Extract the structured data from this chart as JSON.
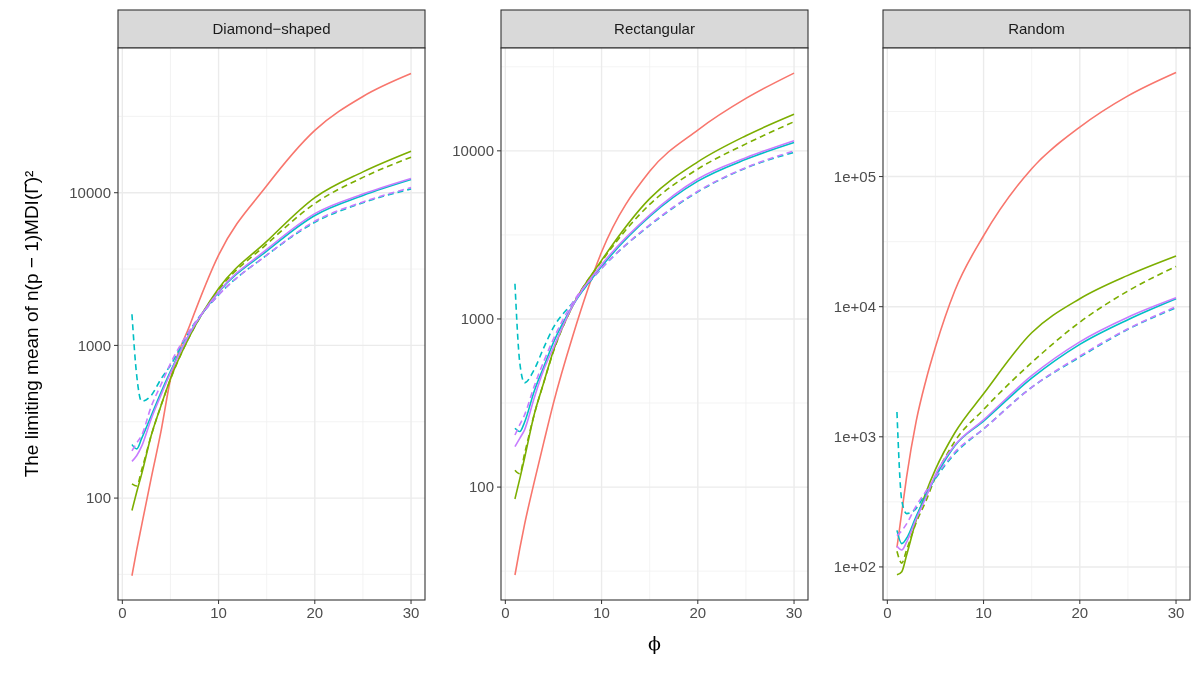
{
  "chart_data": [
    {
      "type": "line",
      "title": "Diamond−shaped",
      "ylabel": "The limiting mean of  n(p − 1)MDI(Γ̂)²",
      "log": "y",
      "grid": true,
      "tick_labels": "xy",
      "x": [
        1,
        1.5,
        2,
        3,
        4,
        5,
        7,
        10,
        15,
        20,
        25,
        30
      ],
      "xlim": [
        -0.45,
        31.45
      ],
      "xticks": [
        0,
        10,
        20,
        30
      ],
      "ylim": [
        21.5,
        88700
      ],
      "yticks": [
        100,
        1000,
        10000
      ],
      "series": [
        {
          "color": "#f8766d",
          "line_style": "solid",
          "values": [
            31,
            46,
            66,
            135,
            270,
            600,
            1350,
            3900,
            11100,
            25600,
            42700,
            60300
          ]
        },
        {
          "color": "#7cae00",
          "line_style": "solid",
          "values": [
            83,
            110,
            143,
            257,
            400,
            605,
            1150,
            2360,
            4800,
            9300,
            13700,
            18700
          ]
        },
        {
          "color": "#7cae00",
          "line_style": "dashed",
          "values": [
            124,
            120,
            152,
            257,
            400,
            600,
            1150,
            2300,
            4600,
            8500,
            12600,
            17100
          ]
        },
        {
          "color": "#00bfc4",
          "line_style": "solid",
          "values": [
            224,
            210,
            245,
            346,
            490,
            675,
            1200,
            2230,
            4150,
            7100,
            9600,
            12200
          ]
        },
        {
          "color": "#00bfc4",
          "line_style": "dashed",
          "values": [
            1600,
            630,
            430,
            470,
            600,
            740,
            1250,
            2140,
            3900,
            6400,
            8600,
            10600
          ]
        },
        {
          "color": "#c77cff",
          "line_style": "solid",
          "values": [
            174,
            190,
            218,
            330,
            470,
            660,
            1200,
            2250,
            4250,
            7300,
            9800,
            12400
          ]
        },
        {
          "color": "#c77cff",
          "line_style": "dashed",
          "values": [
            204,
            230,
            257,
            398,
            550,
            760,
            1250,
            2140,
            3900,
            6500,
            8700,
            10800
          ]
        }
      ]
    },
    {
      "type": "line",
      "title": "Rectangular",
      "xlabel": "ϕ",
      "log": "y",
      "grid": true,
      "tick_labels": "xy",
      "x": [
        1,
        1.5,
        2,
        3,
        4,
        5,
        7,
        10,
        15,
        20,
        25,
        30
      ],
      "xlim": [
        -0.45,
        31.45
      ],
      "xticks": [
        0,
        10,
        20,
        30
      ],
      "ylim": [
        21.3,
        40900
      ],
      "yticks": [
        100,
        1000,
        10000
      ],
      "series": [
        {
          "color": "#f8766d",
          "line_style": "solid",
          "values": [
            30,
            43,
            60,
            107,
            185,
            316,
            790,
            2500,
            7550,
            13300,
            20500,
            29000
          ]
        },
        {
          "color": "#7cae00",
          "line_style": "solid",
          "values": [
            85,
            112,
            149,
            270,
            420,
            650,
            1200,
            2230,
            5200,
            8600,
            12300,
            16500
          ]
        },
        {
          "color": "#7cae00",
          "line_style": "dashed",
          "values": [
            126,
            120,
            158,
            270,
            420,
            640,
            1200,
            2200,
            4800,
            7800,
            11000,
            14900
          ]
        },
        {
          "color": "#00bfc4",
          "line_style": "solid",
          "values": [
            224,
            214,
            243,
            372,
            520,
            725,
            1200,
            2050,
            4070,
            6600,
            8900,
            11200
          ]
        },
        {
          "color": "#00bfc4",
          "line_style": "dashed",
          "values": [
            1620,
            550,
            417,
            500,
            676,
            890,
            1250,
            2000,
            3600,
            5700,
            7900,
            9800
          ]
        },
        {
          "color": "#c77cff",
          "line_style": "solid",
          "values": [
            174,
            195,
            219,
            339,
            500,
            676,
            1200,
            2100,
            4150,
            6800,
            9100,
            11500
          ]
        },
        {
          "color": "#c77cff",
          "line_style": "dashed",
          "values": [
            204,
            235,
            269,
            398,
            560,
            760,
            1250,
            2000,
            3630,
            5750,
            7950,
            10000
          ]
        }
      ]
    },
    {
      "type": "line",
      "title": "Random",
      "log": "y",
      "grid": true,
      "tick_labels": "xy",
      "x": [
        1,
        1.5,
        2,
        3,
        4,
        5,
        7,
        10,
        15,
        20,
        25,
        30
      ],
      "xlim": [
        -0.45,
        31.45
      ],
      "xticks": [
        0,
        10,
        20,
        30
      ],
      "ylim": [
        55.7,
        973000
      ],
      "yticks": [
        {
          "value": 100,
          "label": "1e+02"
        },
        {
          "value": 1000,
          "label": "1e+03"
        },
        {
          "value": 10000,
          "label": "1e+04"
        },
        {
          "value": 100000,
          "label": "1e+05"
        }
      ],
      "series": [
        {
          "color": "#f8766d",
          "line_style": "solid",
          "values": [
            141,
            263,
            490,
            1320,
            2700,
            4900,
            13200,
            35100,
            115000,
            240000,
            417000,
            631000
          ]
        },
        {
          "color": "#7cae00",
          "line_style": "solid",
          "values": [
            87,
            92,
            123,
            229,
            372,
            562,
            1070,
            2140,
            6300,
            11500,
            17400,
            24500
          ]
        },
        {
          "color": "#7cae00",
          "line_style": "dashed",
          "values": [
            132,
            107,
            135,
            219,
            320,
            490,
            920,
            1620,
            3720,
            7600,
            13200,
            20400
          ]
        },
        {
          "color": "#00bfc4",
          "line_style": "solid",
          "values": [
            191,
            151,
            166,
            245,
            350,
            490,
            850,
            1320,
            2820,
            5130,
            7940,
            11500
          ]
        },
        {
          "color": "#00bfc4",
          "line_style": "dashed",
          "values": [
            1550,
            324,
            257,
            282,
            372,
            479,
            740,
            1150,
            2400,
            4100,
            6700,
            9800
          ]
        },
        {
          "color": "#c77cff",
          "line_style": "solid",
          "values": [
            145,
            135,
            155,
            234,
            340,
            513,
            860,
            1350,
            2950,
            5370,
            8300,
            11700
          ]
        },
        {
          "color": "#c77cff",
          "line_style": "dashed",
          "values": [
            174,
            190,
            214,
            295,
            380,
            490,
            760,
            1150,
            2400,
            4170,
            6760,
            10000
          ]
        }
      ]
    }
  ]
}
